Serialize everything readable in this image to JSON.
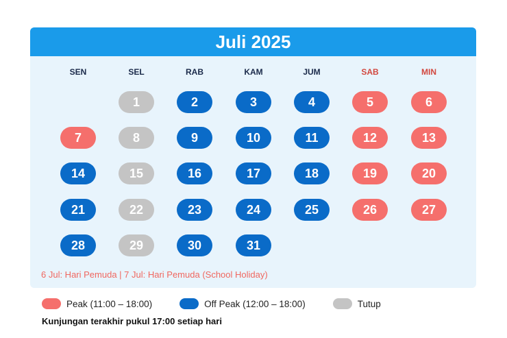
{
  "calendar": {
    "title": "Juli 2025",
    "weekdays": [
      {
        "label": "SEN",
        "color": "#1b2a4a"
      },
      {
        "label": "SEL",
        "color": "#1b2a4a"
      },
      {
        "label": "RAB",
        "color": "#1b2a4a"
      },
      {
        "label": "KAM",
        "color": "#1b2a4a"
      },
      {
        "label": "JUM",
        "color": "#1b2a4a"
      },
      {
        "label": "SAB",
        "color": "#d2483f"
      },
      {
        "label": "MIN",
        "color": "#d2483f"
      }
    ],
    "days": [
      {
        "day": "1",
        "status": "tutup"
      },
      {
        "day": "2",
        "status": "offpeak"
      },
      {
        "day": "3",
        "status": "offpeak"
      },
      {
        "day": "4",
        "status": "offpeak"
      },
      {
        "day": "5",
        "status": "peak"
      },
      {
        "day": "6",
        "status": "peak"
      },
      {
        "day": "7",
        "status": "peak"
      },
      {
        "day": "8",
        "status": "tutup"
      },
      {
        "day": "9",
        "status": "offpeak"
      },
      {
        "day": "10",
        "status": "offpeak"
      },
      {
        "day": "11",
        "status": "offpeak"
      },
      {
        "day": "12",
        "status": "peak"
      },
      {
        "day": "13",
        "status": "peak"
      },
      {
        "day": "14",
        "status": "offpeak"
      },
      {
        "day": "15",
        "status": "tutup"
      },
      {
        "day": "16",
        "status": "offpeak"
      },
      {
        "day": "17",
        "status": "offpeak"
      },
      {
        "day": "18",
        "status": "offpeak"
      },
      {
        "day": "19",
        "status": "peak"
      },
      {
        "day": "20",
        "status": "peak"
      },
      {
        "day": "21",
        "status": "offpeak"
      },
      {
        "day": "22",
        "status": "tutup"
      },
      {
        "day": "23",
        "status": "offpeak"
      },
      {
        "day": "24",
        "status": "offpeak"
      },
      {
        "day": "25",
        "status": "offpeak"
      },
      {
        "day": "26",
        "status": "peak"
      },
      {
        "day": "27",
        "status": "peak"
      },
      {
        "day": "28",
        "status": "offpeak"
      },
      {
        "day": "29",
        "status": "tutup"
      },
      {
        "day": "30",
        "status": "offpeak"
      },
      {
        "day": "31",
        "status": "offpeak"
      }
    ],
    "first_weekday_index": 1,
    "holiday_note": "6 Jul: Hari Pemuda  |  7 Jul: Hari Pemuda (School Holiday)"
  },
  "legend": {
    "peak_label": "Peak (11:00 – 18:00)",
    "offpeak_label": "Off Peak (12:00 – 18:00)",
    "closed_label": "Tutup"
  },
  "footer_note": "Kunjungan terakhir pukul 17:00 setiap hari",
  "colors": {
    "peak": "#f56f6c",
    "offpeak": "#0a6bc8",
    "tutup": "#c4c4c4",
    "header": "#1a9bea",
    "card_bg": "#e8f4fc",
    "holiday_text": "#f0675f"
  }
}
